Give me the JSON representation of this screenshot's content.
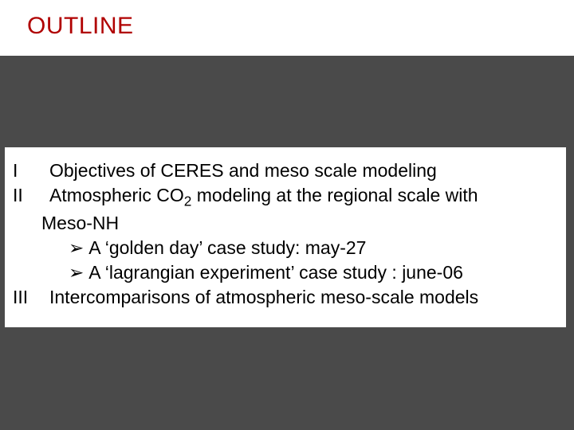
{
  "slide": {
    "title": "OUTLINE",
    "title_color": "#b00000",
    "title_fontsize": 30,
    "background_color": "#4a4a4a",
    "band_color": "#ffffff",
    "content_bg": "#ffffff",
    "body_fontsize": 23,
    "items": {
      "i1_num": "I",
      "i1_text": "Objectives of CERES and  meso scale modeling",
      "i2_num": "II",
      "i2_text_a": "Atmospheric CO",
      "i2_sub": "2",
      "i2_text_b": " modeling at the regional scale  with",
      "i2_cont": "Meso-NH",
      "b1": "A ‘golden day’ case study: may-27",
      "b2": "A  ‘lagrangian experiment’ case study : june-06",
      "i3_num": "III",
      "i3_text": "Intercomparisons of atmospheric meso-scale models"
    },
    "bullet_glyph": "➢"
  }
}
